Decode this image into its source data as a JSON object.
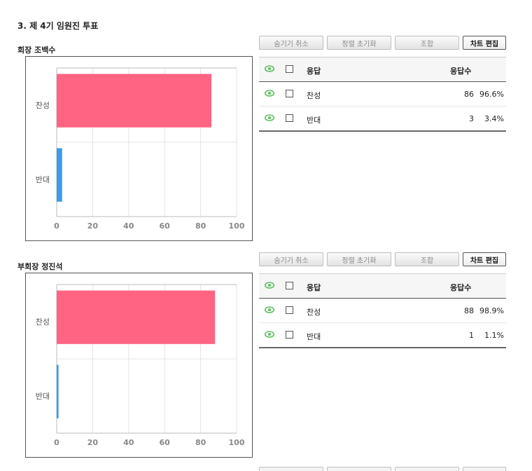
{
  "question_title": "3. 제 4기 임원진 투표",
  "toolbar": {
    "hide_cancel": "숨기기 취소",
    "sort_reset": "정렬 초기화",
    "combine": "조합",
    "chart_edit": "차트 편집"
  },
  "table_header": {
    "response": "응답",
    "count": "응답수"
  },
  "colors": {
    "agree": "#ff6483",
    "disagree": "#3a9be6",
    "eye": "#5cbf5c"
  },
  "icons": {
    "visibility": "eye-icon",
    "select": "checkbox-icon"
  },
  "sections": [
    {
      "title": "회장 조백수",
      "rows": [
        {
          "label": "찬성",
          "count": "86",
          "percent": "96.6%"
        },
        {
          "label": "반대",
          "count": "3",
          "percent": "3.4%"
        }
      ]
    },
    {
      "title": "부회장 정진석",
      "rows": [
        {
          "label": "찬성",
          "count": "88",
          "percent": "98.9%"
        },
        {
          "label": "반대",
          "count": "1",
          "percent": "1.1%"
        }
      ]
    }
  ],
  "chart_data": [
    {
      "type": "bar",
      "orientation": "horizontal",
      "title": "",
      "categories": [
        "찬성",
        "반대"
      ],
      "values": [
        86,
        3
      ],
      "colors": [
        "#ff6483",
        "#3a9be6"
      ],
      "xlim": [
        0,
        100
      ],
      "xticks": [
        "0",
        "20",
        "40",
        "60",
        "80",
        "100"
      ],
      "grid": true
    },
    {
      "type": "bar",
      "orientation": "horizontal",
      "title": "",
      "categories": [
        "찬성",
        "반대"
      ],
      "values": [
        88,
        1
      ],
      "colors": [
        "#ff6483",
        "#3a9be6"
      ],
      "xlim": [
        0,
        100
      ],
      "xticks": [
        "0",
        "20",
        "40",
        "60",
        "80",
        "100"
      ],
      "grid": true
    }
  ]
}
